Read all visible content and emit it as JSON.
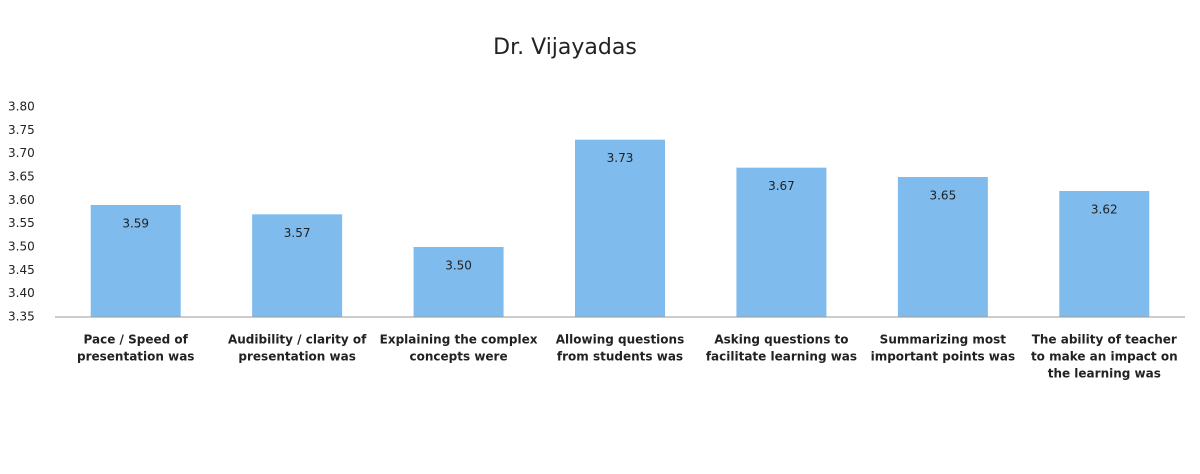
{
  "chart_data": {
    "type": "bar",
    "title": "Dr. Vijayadas",
    "categories": [
      [
        "Pace / Speed of",
        "presentation was"
      ],
      [
        "Audibility / clarity of",
        "presentation was"
      ],
      [
        "Explaining the complex",
        "concepts were"
      ],
      [
        "Allowing questions",
        "from students was"
      ],
      [
        "Asking questions to",
        "facilitate learning was"
      ],
      [
        "Summarizing most",
        "important points was"
      ],
      [
        "The ability of teacher",
        "to make an impact on",
        "the learning was"
      ]
    ],
    "values": [
      3.59,
      3.57,
      3.5,
      3.73,
      3.67,
      3.65,
      3.62
    ],
    "value_labels": [
      "3.59",
      "3.57",
      "3.50",
      "3.73",
      "3.67",
      "3.65",
      "3.62"
    ],
    "color": "#7fbbec",
    "ylim": [
      3.35,
      3.8
    ],
    "yticks": [
      3.35,
      {
        "value": 3.4,
        "label": "3.40"
      },
      3.45,
      {
        "value": 3.5,
        "label": "3.50"
      },
      3.55,
      {
        "value": 3.6,
        "label": "3.60"
      },
      3.65,
      {
        "value": 3.7,
        "label": "3.70"
      },
      3.75,
      {
        "value": 3.8,
        "label": "3.80"
      }
    ],
    "grid": false
  }
}
